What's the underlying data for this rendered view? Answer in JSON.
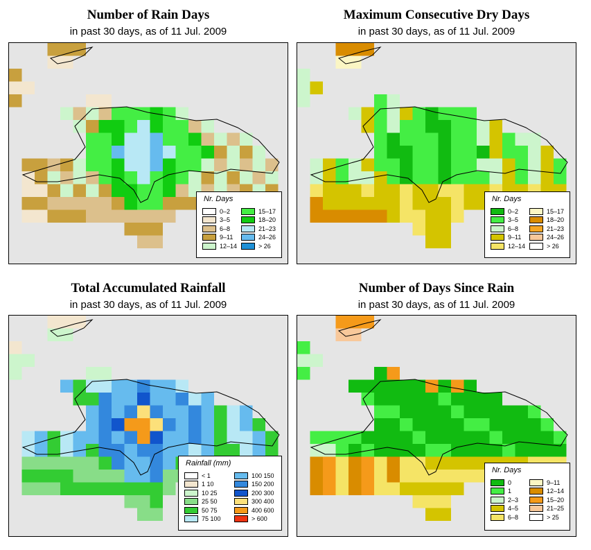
{
  "panels": [
    {
      "id": "rain-days",
      "title": "Number of Rain Days",
      "subtitle": "in past 30 days, as of  11 Jul. 2009",
      "legend": {
        "title": "Nr. Days",
        "items": [
          {
            "label": "0–2",
            "color": "#ffffff"
          },
          {
            "label": "3–5",
            "color": "#f3e6cf"
          },
          {
            "label": "6–8",
            "color": "#dcc08c"
          },
          {
            "label": "9–11",
            "color": "#c8a03e"
          },
          {
            "label": "12–14",
            "color": "#ccf5cc"
          },
          {
            "label": "15–17",
            "color": "#44ee44"
          },
          {
            "label": "18–20",
            "color": "#11cc11"
          },
          {
            "label": "21–23",
            "color": "#b8e8f5"
          },
          {
            "label": "24–26",
            "color": "#66bbee"
          },
          {
            "label": "> 26",
            "color": "#1e90d6"
          }
        ]
      }
    },
    {
      "id": "dry-days",
      "title": "Maximum Consecutive Dry Days",
      "subtitle": "in past 30 days, as of  11 Jul. 2009",
      "legend": {
        "title": "Nr. Days",
        "items": [
          {
            "label": "0–2",
            "color": "#11bb11"
          },
          {
            "label": "3–5",
            "color": "#44ee44"
          },
          {
            "label": "6–8",
            "color": "#ccf5cc"
          },
          {
            "label": "9–11",
            "color": "#d4c400"
          },
          {
            "label": "12–14",
            "color": "#f5e466"
          },
          {
            "label": "15–17",
            "color": "#fbf6c4"
          },
          {
            "label": "18–20",
            "color": "#d98c00"
          },
          {
            "label": "21–23",
            "color": "#f5a623"
          },
          {
            "label": "24–26",
            "color": "#f8c89a"
          },
          {
            "label": "> 26",
            "color": "#ffffff"
          }
        ]
      }
    },
    {
      "id": "rainfall",
      "title": "Total Accumulated Rainfall",
      "subtitle": "in past 30 days, as of  11 Jul. 2009",
      "legend": {
        "title": "Rainfall (mm)",
        "items": [
          {
            "label": "< 1",
            "color": "#ffffff"
          },
          {
            "label": "1    10",
            "color": "#f3e6cf"
          },
          {
            "label": "10    25",
            "color": "#ccf5cc"
          },
          {
            "label": "25    50",
            "color": "#88dd88"
          },
          {
            "label": "50    75",
            "color": "#33cc33"
          },
          {
            "label": "75   100",
            "color": "#b8e8f5"
          },
          {
            "label": "100   150",
            "color": "#66bbee"
          },
          {
            "label": "150   200",
            "color": "#3388dd"
          },
          {
            "label": "200   300",
            "color": "#1155cc"
          },
          {
            "label": "300   400",
            "color": "#fce07a"
          },
          {
            "label": "400   600",
            "color": "#f59a1a"
          },
          {
            "label": "> 600",
            "color": "#ee3311"
          }
        ]
      }
    },
    {
      "id": "days-since-rain",
      "title": "Number of Days Since Rain",
      "subtitle": "in past 30 days, as of  11 Jul. 2009",
      "legend": {
        "title": "Nr. Days",
        "items": [
          {
            "label": "0",
            "color": "#11bb11"
          },
          {
            "label": "1",
            "color": "#44ee44"
          },
          {
            "label": "2–3",
            "color": "#ccf5cc"
          },
          {
            "label": "4–5",
            "color": "#d4c400"
          },
          {
            "label": "6–8",
            "color": "#f5e466"
          },
          {
            "label": "9–11",
            "color": "#fbf6c4"
          },
          {
            "label": "12–14",
            "color": "#d98c00"
          },
          {
            "label": "15–20",
            "color": "#f59a1a"
          },
          {
            "label": "21–25",
            "color": "#f8c89a"
          },
          {
            "label": "> 25",
            "color": "#ffffff"
          }
        ]
      }
    }
  ]
}
